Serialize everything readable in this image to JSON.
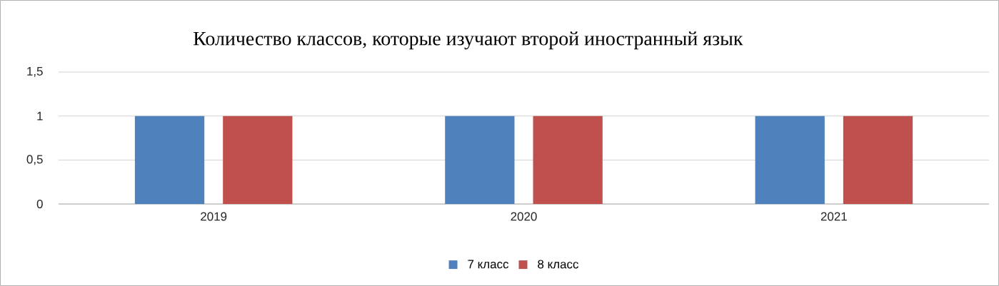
{
  "chart_data": {
    "type": "bar",
    "title": "Количество классов, которые изучают второй иностранный язык",
    "categories": [
      "2019",
      "2020",
      "2021"
    ],
    "series": [
      {
        "name": "7 класс",
        "color": "#4f81bd",
        "values": [
          1,
          1,
          1
        ]
      },
      {
        "name": "8 класс",
        "color": "#c0504d",
        "values": [
          1,
          1,
          1
        ]
      }
    ],
    "ylim": [
      0,
      1.5
    ],
    "yticks": [
      0,
      {
        "value": 0.5,
        "label": "0,5"
      },
      1,
      {
        "value": 1.5,
        "label": "1,5"
      }
    ],
    "grid": "y",
    "legend": "bottom"
  }
}
